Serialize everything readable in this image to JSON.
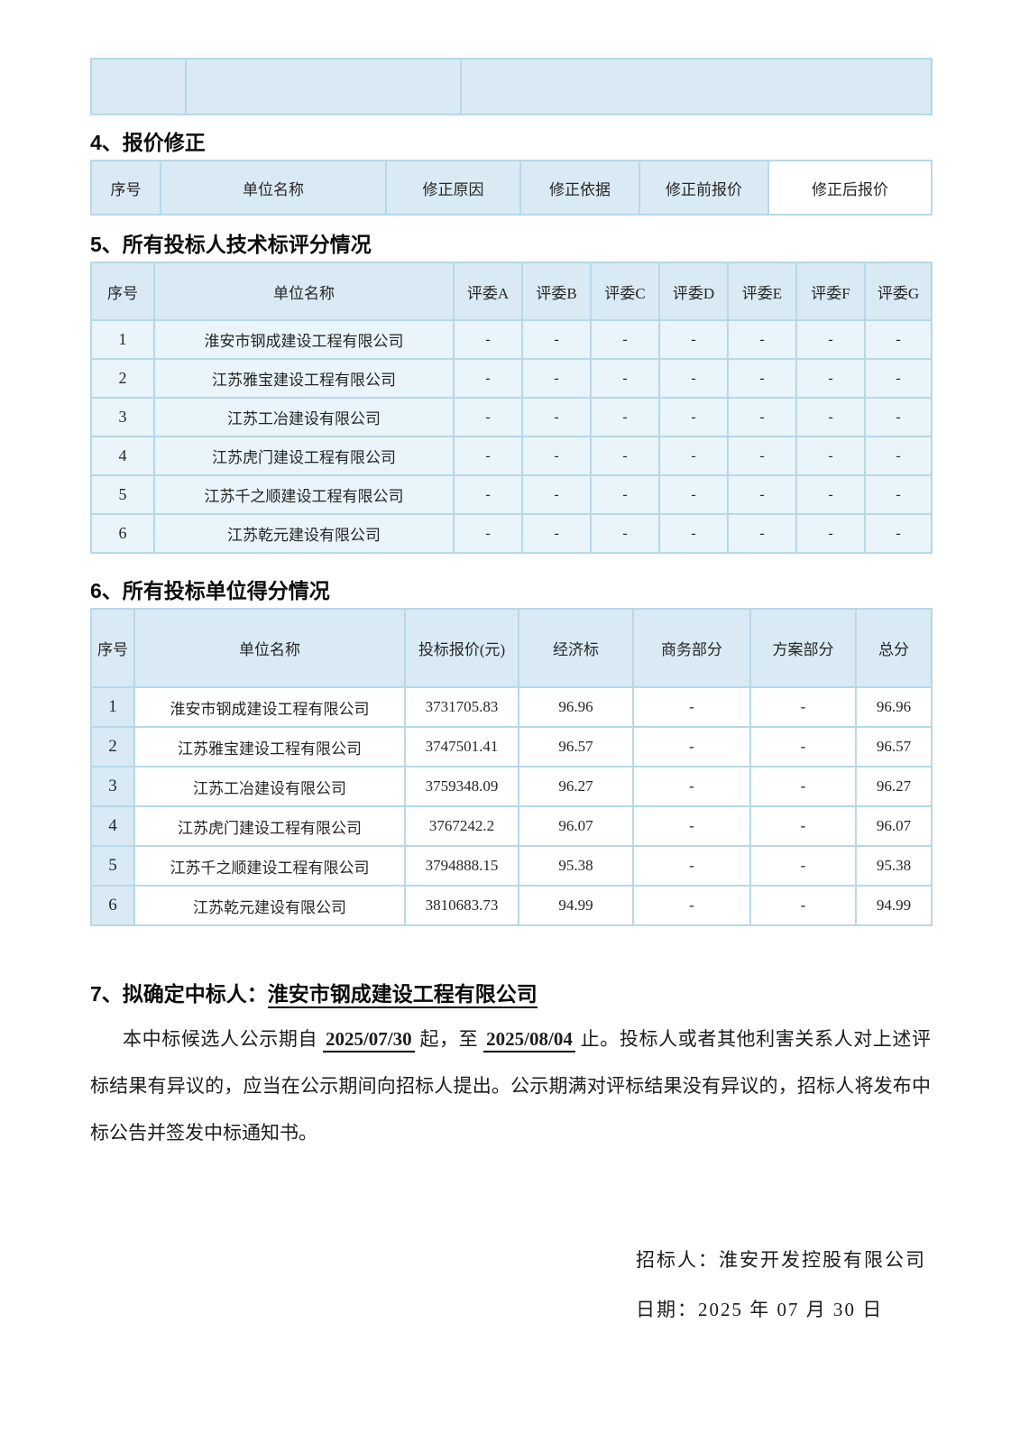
{
  "colors": {
    "cell_blue": "#d9eaf5",
    "row_tint": "#e9f4fb",
    "border_blue": "#b7d8e9",
    "text_dark": "#262626",
    "heading_dark": "#0c0c0c"
  },
  "section4": {
    "title": "4、报价修正",
    "headers": [
      "序号",
      "单位名称",
      "修正原因",
      "修正依据",
      "修正前报价",
      "修正后报价"
    ]
  },
  "section5": {
    "title": "5、所有投标人技术标评分情况",
    "headers": [
      "序号",
      "单位名称",
      "评委A",
      "评委B",
      "评委C",
      "评委D",
      "评委E",
      "评委F",
      "评委G"
    ],
    "rows": [
      {
        "no": "1",
        "name": "淮安市钢成建设工程有限公司",
        "scores": [
          "-",
          "-",
          "-",
          "-",
          "-",
          "-",
          "-"
        ]
      },
      {
        "no": "2",
        "name": "江苏雅宝建设工程有限公司",
        "scores": [
          "-",
          "-",
          "-",
          "-",
          "-",
          "-",
          "-"
        ]
      },
      {
        "no": "3",
        "name": "江苏工冶建设有限公司",
        "scores": [
          "-",
          "-",
          "-",
          "-",
          "-",
          "-",
          "-"
        ]
      },
      {
        "no": "4",
        "name": "江苏虎门建设工程有限公司",
        "scores": [
          "-",
          "-",
          "-",
          "-",
          "-",
          "-",
          "-"
        ]
      },
      {
        "no": "5",
        "name": "江苏千之顺建设工程有限公司",
        "scores": [
          "-",
          "-",
          "-",
          "-",
          "-",
          "-",
          "-"
        ]
      },
      {
        "no": "6",
        "name": "江苏乾元建设有限公司",
        "scores": [
          "-",
          "-",
          "-",
          "-",
          "-",
          "-",
          "-"
        ]
      }
    ]
  },
  "section6": {
    "title": "6、所有投标单位得分情况",
    "headers": [
      "序号",
      "单位名称",
      "投标报价(元)",
      "经济标",
      "商务部分",
      "方案部分",
      "总分"
    ],
    "rows": [
      {
        "no": "1",
        "name": "淮安市钢成建设工程有限公司",
        "price": "3731705.83",
        "economic": "96.96",
        "business": "-",
        "plan": "-",
        "total": "96.96"
      },
      {
        "no": "2",
        "name": "江苏雅宝建设工程有限公司",
        "price": "3747501.41",
        "economic": "96.57",
        "business": "-",
        "plan": "-",
        "total": "96.57"
      },
      {
        "no": "3",
        "name": "江苏工冶建设有限公司",
        "price": "3759348.09",
        "economic": "96.27",
        "business": "-",
        "plan": "-",
        "total": "96.27"
      },
      {
        "no": "4",
        "name": "江苏虎门建设工程有限公司",
        "price": "3767242.2",
        "economic": "96.07",
        "business": "-",
        "plan": "-",
        "total": "96.07"
      },
      {
        "no": "5",
        "name": "江苏千之顺建设工程有限公司",
        "price": "3794888.15",
        "economic": "95.38",
        "business": "-",
        "plan": "-",
        "total": "95.38"
      },
      {
        "no": "6",
        "name": "江苏乾元建设有限公司",
        "price": "3810683.73",
        "economic": "94.99",
        "business": "-",
        "plan": "-",
        "total": "94.99"
      }
    ]
  },
  "section7": {
    "title_prefix": "7、拟确定中标人：",
    "winner": "淮安市钢成建设工程有限公司",
    "p1": "本中标候选人公示期自 ",
    "date1": "2025/07/30",
    "p2": " 起，至 ",
    "date2": "2025/08/04",
    "p3": " 止。投标人或者其他利害关系人对上述评标结果有异议的，应当在公示期间向招标人提出。公示期满对评标结果没有异议的，招标人将发布中标公告并签发中标通知书。"
  },
  "footer": {
    "tenderer": "招标人：淮安开发控股有限公司",
    "date": "日期：2025 年 07 月 30 日"
  }
}
